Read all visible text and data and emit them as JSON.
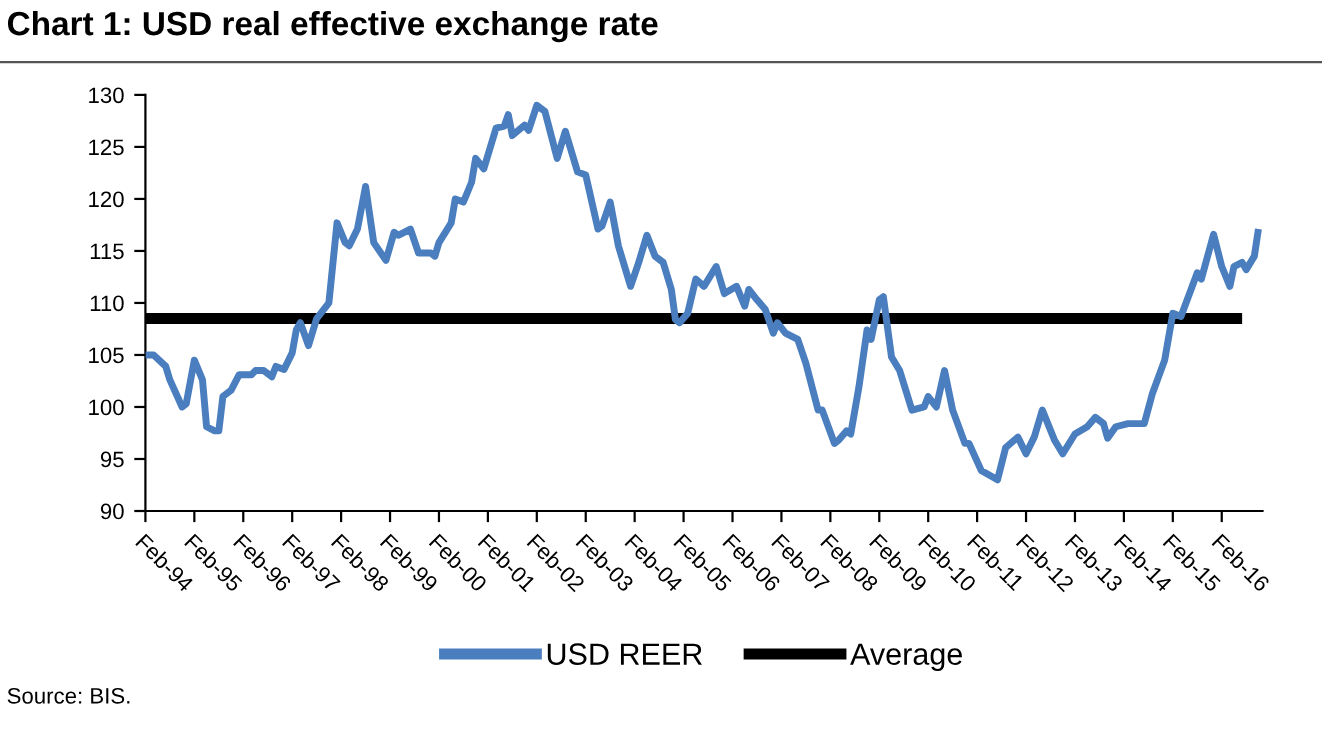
{
  "chart_data": {
    "type": "line",
    "title": "Chart 1: USD real effective exchange rate",
    "annotations": [
      "Source: BIS."
    ],
    "xlim": [
      "1994-02",
      "2016-12"
    ],
    "xticks": [
      {
        "value": "1994-02",
        "label": "Feb-94"
      },
      {
        "value": "1995-02",
        "label": "Feb-95"
      },
      {
        "value": "1996-02",
        "label": "Feb-96"
      },
      {
        "value": "1997-02",
        "label": "Feb-97"
      },
      {
        "value": "1998-02",
        "label": "Feb-98"
      },
      {
        "value": "1999-02",
        "label": "Feb-99"
      },
      {
        "value": "2000-02",
        "label": "Feb-00"
      },
      {
        "value": "2001-02",
        "label": "Feb-01"
      },
      {
        "value": "2002-02",
        "label": "Feb-02"
      },
      {
        "value": "2003-02",
        "label": "Feb-03"
      },
      {
        "value": "2004-02",
        "label": "Feb-04"
      },
      {
        "value": "2005-02",
        "label": "Feb-05"
      },
      {
        "value": "2006-02",
        "label": "Feb-06"
      },
      {
        "value": "2007-02",
        "label": "Feb-07"
      },
      {
        "value": "2008-02",
        "label": "Feb-08"
      },
      {
        "value": "2009-02",
        "label": "Feb-09"
      },
      {
        "value": "2010-02",
        "label": "Feb-10"
      },
      {
        "value": "2011-02",
        "label": "Feb-11"
      },
      {
        "value": "2012-02",
        "label": "Feb-12"
      },
      {
        "value": "2013-02",
        "label": "Feb-13"
      },
      {
        "value": "2014-02",
        "label": "Feb-14"
      },
      {
        "value": "2015-02",
        "label": "Feb-15"
      },
      {
        "value": "2016-02",
        "label": "Feb-16"
      }
    ],
    "ylim": [
      90,
      130
    ],
    "yticks": [
      90,
      95,
      100,
      105,
      110,
      115,
      120,
      125,
      130
    ],
    "grid": false,
    "legend": "bottom",
    "marker": "none",
    "line_style": "solid",
    "series": [
      {
        "name": "USD REER",
        "color": "#4a7ebf",
        "x": [
          "1994-02",
          "1994-04",
          "1994-07",
          "1994-08",
          "1994-11",
          "1994-12",
          "1995-02",
          "1995-04",
          "1995-05",
          "1995-07",
          "1995-08",
          "1995-09",
          "1995-11",
          "1996-01",
          "1996-04",
          "1996-05",
          "1996-07",
          "1996-09",
          "1996-10",
          "1996-12",
          "1997-02",
          "1997-03",
          "1997-04",
          "1997-06",
          "1997-08",
          "1997-11",
          "1998-01",
          "1998-03",
          "1998-04",
          "1998-06",
          "1998-08",
          "1998-10",
          "1999-01",
          "1999-03",
          "1999-04",
          "1999-07",
          "1999-09",
          "1999-12",
          "2000-01",
          "2000-02",
          "2000-05",
          "2000-06",
          "2000-08",
          "2000-10",
          "2000-11",
          "2001-01",
          "2001-04",
          "2001-06",
          "2001-07",
          "2001-08",
          "2001-11",
          "2001-12",
          "2002-02",
          "2002-04",
          "2002-07",
          "2002-09",
          "2002-12",
          "2003-02",
          "2003-05",
          "2003-06",
          "2003-08",
          "2003-10",
          "2004-01",
          "2004-03",
          "2004-05",
          "2004-07",
          "2004-09",
          "2004-11",
          "2004-12",
          "2005-01",
          "2005-03",
          "2005-05",
          "2005-07",
          "2005-10",
          "2005-12",
          "2006-03",
          "2006-05",
          "2006-06",
          "2006-08",
          "2006-10",
          "2006-12",
          "2007-01",
          "2007-03",
          "2007-06",
          "2007-08",
          "2007-11",
          "2007-12",
          "2008-03",
          "2008-04",
          "2008-06",
          "2008-07",
          "2008-09",
          "2008-11",
          "2008-12",
          "2009-02",
          "2009-03",
          "2009-05",
          "2009-07",
          "2009-10",
          "2010-01",
          "2010-02",
          "2010-04",
          "2010-06",
          "2010-08",
          "2010-11",
          "2010-12",
          "2011-03",
          "2011-07",
          "2011-09",
          "2011-12",
          "2012-02",
          "2012-04",
          "2012-06",
          "2012-09",
          "2012-11",
          "2013-02",
          "2013-05",
          "2013-07",
          "2013-09",
          "2013-10",
          "2013-12",
          "2014-03",
          "2014-07",
          "2014-09",
          "2014-12",
          "2015-02",
          "2015-04",
          "2015-08",
          "2015-09",
          "2015-12",
          "2016-02",
          "2016-04",
          "2016-05",
          "2016-07",
          "2016-08",
          "2016-10",
          "2016-11"
        ],
        "values": [
          105.0,
          105.0,
          103.9,
          102.6,
          100.0,
          100.3,
          104.5,
          102.6,
          98.1,
          97.7,
          97.7,
          101.0,
          101.6,
          103.1,
          103.1,
          103.5,
          103.5,
          102.9,
          103.9,
          103.6,
          105.2,
          107.4,
          108.1,
          105.9,
          108.5,
          110.0,
          117.7,
          115.8,
          115.5,
          117.1,
          121.2,
          115.8,
          114.1,
          116.8,
          116.5,
          117.1,
          114.8,
          114.8,
          114.5,
          115.8,
          117.7,
          120.0,
          119.7,
          121.6,
          123.9,
          122.9,
          126.8,
          127.0,
          128.1,
          126.1,
          127.1,
          126.6,
          129.0,
          128.4,
          123.9,
          126.5,
          122.6,
          122.3,
          117.1,
          117.4,
          119.7,
          115.5,
          111.6,
          113.9,
          116.5,
          114.5,
          113.9,
          111.3,
          108.4,
          108.1,
          109.0,
          112.3,
          111.6,
          113.5,
          110.9,
          111.6,
          109.7,
          111.3,
          110.3,
          109.4,
          107.1,
          108.1,
          107.1,
          106.5,
          104.2,
          99.7,
          99.7,
          96.5,
          96.8,
          97.7,
          97.4,
          101.9,
          107.4,
          106.5,
          110.3,
          110.6,
          104.8,
          103.5,
          99.7,
          100.0,
          101.0,
          100.0,
          103.5,
          99.7,
          96.5,
          96.5,
          93.9,
          93.0,
          96.1,
          97.1,
          95.5,
          97.1,
          99.7,
          96.8,
          95.5,
          97.4,
          98.1,
          99.0,
          98.4,
          97.0,
          98.1,
          98.4,
          98.4,
          101.3,
          104.5,
          109.0,
          108.7,
          112.9,
          112.3,
          116.6,
          113.5,
          111.6,
          113.5,
          113.9,
          113.2,
          114.5,
          117.1
        ]
      },
      {
        "name": "Average",
        "color": "#000000",
        "x": [
          "1994-02",
          "2016-07"
        ],
        "values": [
          108.5,
          108.5
        ]
      }
    ]
  }
}
